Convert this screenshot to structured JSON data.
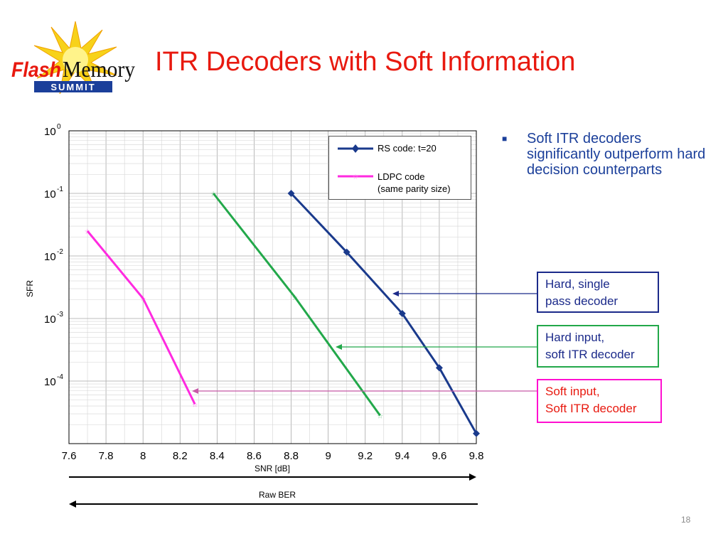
{
  "slide": {
    "title": "ITR Decoders with Soft Information",
    "page_number": "18",
    "logo_text": {
      "word1": "Flash",
      "word2": "Memory",
      "word3": "SUMMIT"
    }
  },
  "bullets": [
    "Soft ITR decoders significantly outperform hard decision counterparts"
  ],
  "callouts": {
    "hard_single": {
      "line1": "Hard, single",
      "line2": "pass decoder"
    },
    "hard_input": {
      "line1": "Hard input,",
      "line2": "soft ITR decoder"
    },
    "soft_input": {
      "line1": "Soft input,",
      "line2": "Soft ITR decoder"
    }
  },
  "colors": {
    "title": "#e8190f",
    "rs": "#1a3a8c",
    "ldpc": "#ff2ae0",
    "hard_input": "#22a84a",
    "text_blue": "#1b3f9a"
  },
  "chart_data": {
    "type": "line",
    "xlabel": "SNR [dB]",
    "ylabel": "SFR",
    "below_label": "Raw BER",
    "xlim": [
      7.6,
      9.8
    ],
    "xticks": [
      "7.6",
      "7.8",
      "8",
      "8.2",
      "8.4",
      "8.6",
      "8.8",
      "9",
      "9.2",
      "9.4",
      "9.6",
      "9.8"
    ],
    "ylim_log10": [
      -5,
      0
    ],
    "yticks": [
      {
        "base": "10",
        "exp": "0"
      },
      {
        "base": "10",
        "exp": "-1"
      },
      {
        "base": "10",
        "exp": "-2"
      },
      {
        "base": "10",
        "exp": "-3"
      },
      {
        "base": "10",
        "exp": "-4"
      }
    ],
    "y_scale": "log",
    "grid": true,
    "legend_position": "top-right",
    "series": [
      {
        "name": "RS code: t=20",
        "color": "#1a3a8c",
        "marker": "diamond",
        "x": [
          8.8,
          9.1,
          9.4,
          9.6,
          9.8
        ],
        "y": [
          0.1,
          0.0115,
          0.0012,
          0.000163,
          1.45e-05
        ]
      },
      {
        "name": "LDPC code (same parity size)",
        "color": "#ff2ae0",
        "marker": "star",
        "x": [
          7.7,
          8.0,
          8.28
        ],
        "y": [
          0.025,
          0.0021,
          4.27e-05
        ]
      },
      {
        "name": "",
        "color": "#22a84a",
        "marker": "star",
        "x": [
          8.38,
          8.82,
          9.28
        ],
        "y": [
          0.1,
          0.0022,
          2.82e-05
        ]
      }
    ],
    "legend": [
      {
        "line1": "RS code: t=20",
        "line2": ""
      },
      {
        "line1": "LDPC code",
        "line2": "(same parity size)"
      }
    ]
  }
}
